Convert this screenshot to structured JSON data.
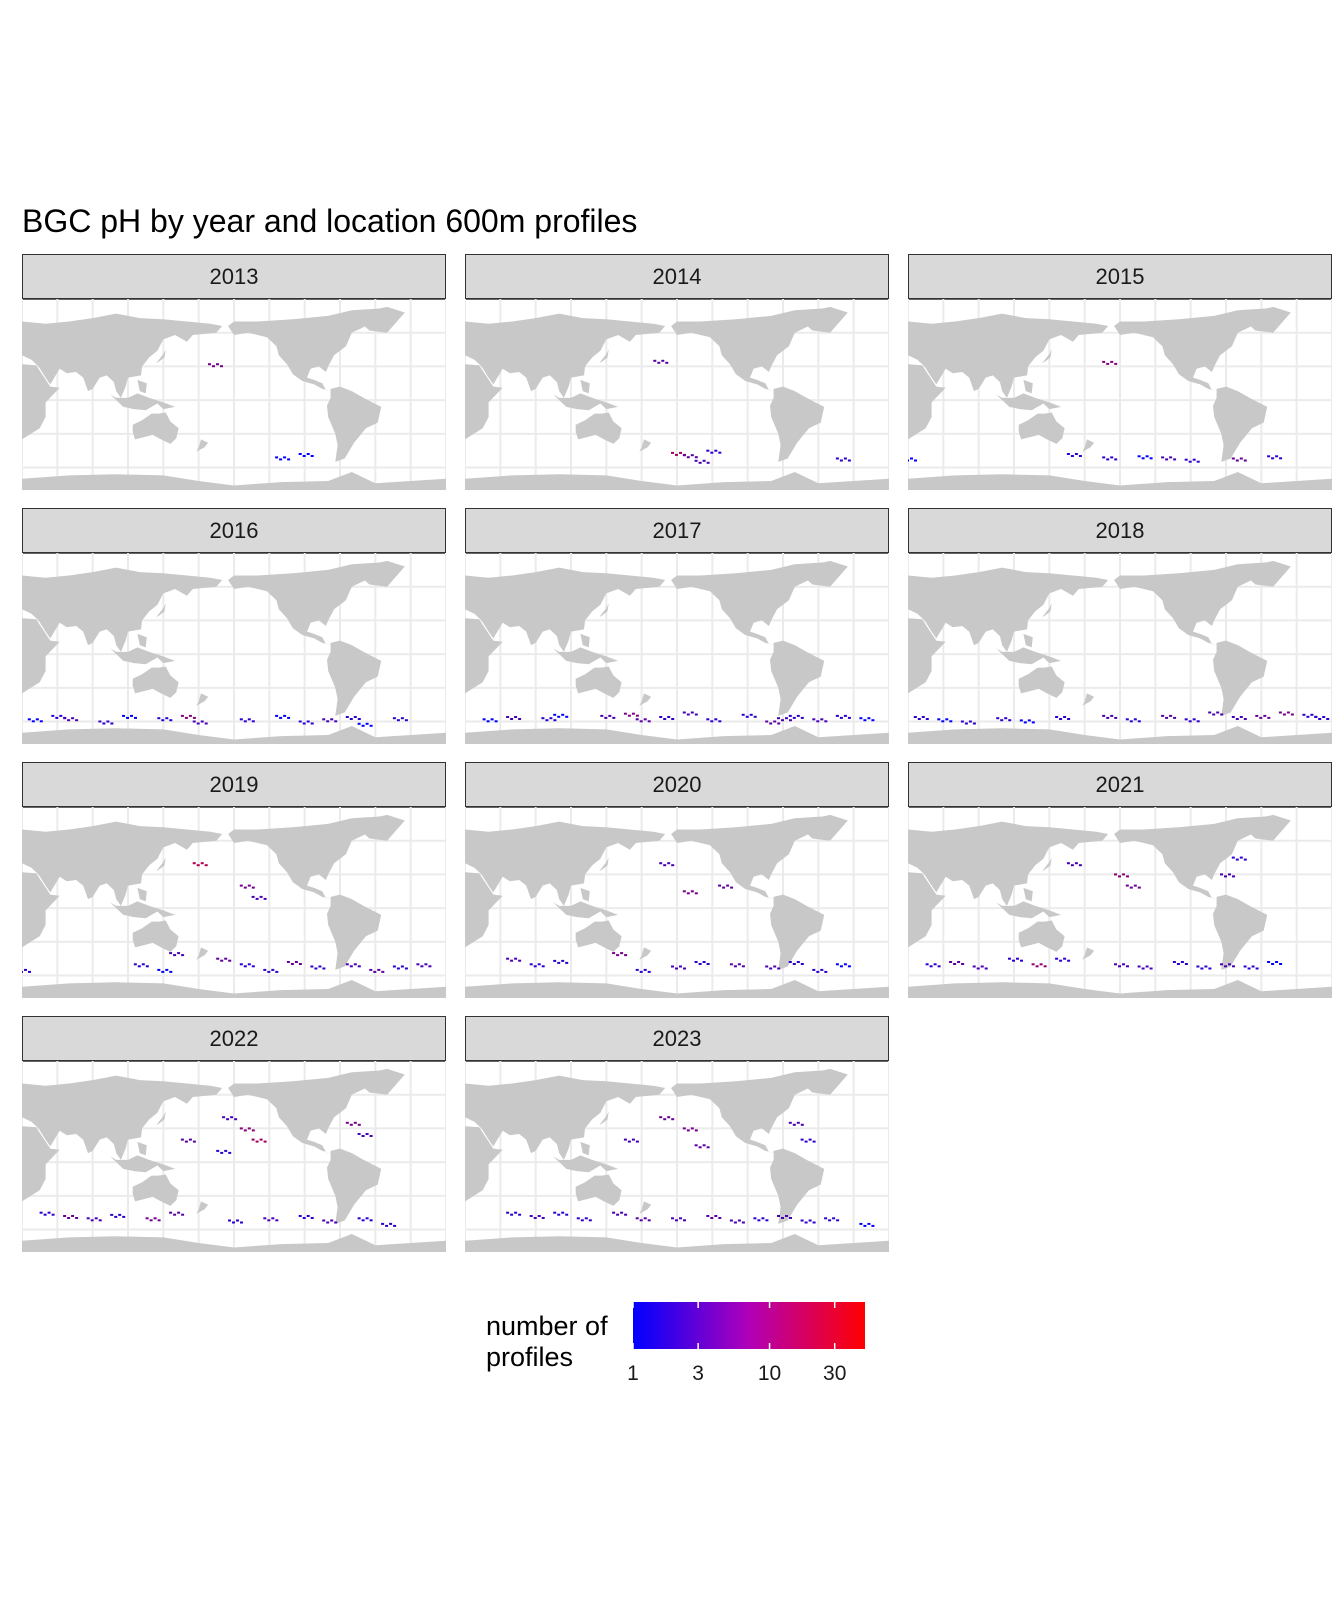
{
  "title": "BGC pH by year and location 600m profiles",
  "colors": {
    "land": "#c8c8c8",
    "ocean": "#ffffff",
    "grid": "#ebebeb",
    "strip": "#d9d9d9",
    "low": "#0000ff",
    "high": "#ff0000"
  },
  "legend": {
    "title": "number of profiles",
    "ticks": [
      {
        "label": "1",
        "value": 1
      },
      {
        "label": "3",
        "value": 3
      },
      {
        "label": "10",
        "value": 10
      },
      {
        "label": "30",
        "value": 30
      }
    ],
    "scale": "log",
    "max": 50
  },
  "chart_data": {
    "type": "heatmap",
    "facet_by": "year",
    "panels": [
      {
        "year": "2013",
        "profiles": [
          [
            -177,
            32,
            6
          ],
          [
            -120,
            -51,
            1
          ],
          [
            -100,
            -48,
            1
          ]
        ]
      },
      {
        "year": "2014",
        "profiles": [
          [
            -175,
            35,
            4
          ],
          [
            -160,
            -47,
            12
          ],
          [
            -150,
            -49,
            4
          ],
          [
            -140,
            -54,
            3
          ],
          [
            -130,
            -45,
            2
          ],
          [
            -20,
            -52,
            2
          ]
        ]
      },
      {
        "year": "2015",
        "profiles": [
          [
            -170,
            34,
            8
          ],
          [
            20,
            -52,
            1
          ],
          [
            160,
            -48,
            2
          ],
          [
            -170,
            -51,
            2
          ],
          [
            -140,
            -50,
            1
          ],
          [
            -120,
            -51,
            3
          ],
          [
            -100,
            -53,
            2
          ],
          [
            -60,
            -52,
            5
          ],
          [
            -30,
            -50,
            2
          ]
        ]
      },
      {
        "year": "2016",
        "profiles": [
          [
            30,
            -58,
            1
          ],
          [
            50,
            -55,
            2
          ],
          [
            60,
            -57,
            3
          ],
          [
            90,
            -60,
            2
          ],
          [
            110,
            -55,
            1
          ],
          [
            140,
            -57,
            2
          ],
          [
            160,
            -55,
            8
          ],
          [
            170,
            -60,
            3
          ],
          [
            -150,
            -58,
            2
          ],
          [
            -120,
            -55,
            1
          ],
          [
            -100,
            -60,
            2
          ],
          [
            -80,
            -58,
            3
          ],
          [
            -60,
            -56,
            2
          ],
          [
            -50,
            -62,
            1
          ],
          [
            -20,
            -57,
            2
          ]
        ]
      },
      {
        "year": "2017",
        "profiles": [
          [
            40,
            -58,
            1
          ],
          [
            60,
            -56,
            3
          ],
          [
            90,
            -57,
            2
          ],
          [
            100,
            -54,
            1
          ],
          [
            140,
            -55,
            3
          ],
          [
            160,
            -53,
            7
          ],
          [
            170,
            -58,
            4
          ],
          [
            -170,
            -56,
            2
          ],
          [
            -150,
            -52,
            3
          ],
          [
            -130,
            -58,
            2
          ],
          [
            -100,
            -54,
            2
          ],
          [
            -80,
            -60,
            4
          ],
          [
            -70,
            -57,
            3
          ],
          [
            -60,
            -55,
            2
          ],
          [
            -40,
            -58,
            3
          ],
          [
            -20,
            -55,
            2
          ],
          [
            0,
            -57,
            1
          ]
        ]
      },
      {
        "year": "2018",
        "profiles": [
          [
            30,
            -56,
            2
          ],
          [
            50,
            -58,
            1
          ],
          [
            70,
            -60,
            2
          ],
          [
            100,
            -57,
            2
          ],
          [
            120,
            -59,
            1
          ],
          [
            150,
            -56,
            2
          ],
          [
            -170,
            -55,
            3
          ],
          [
            -150,
            -58,
            2
          ],
          [
            -120,
            -55,
            4
          ],
          [
            -100,
            -58,
            2
          ],
          [
            -80,
            -52,
            3
          ],
          [
            -60,
            -56,
            3
          ],
          [
            -40,
            -55,
            5
          ],
          [
            -20,
            -52,
            6
          ],
          [
            0,
            -54,
            2
          ],
          [
            10,
            -56,
            2
          ]
        ]
      },
      {
        "year": "2019",
        "profiles": [
          [
            170,
            40,
            15
          ],
          [
            -150,
            20,
            6
          ],
          [
            -140,
            10,
            3
          ],
          [
            120,
            -50,
            2
          ],
          [
            140,
            -55,
            1
          ],
          [
            150,
            -40,
            3
          ],
          [
            -170,
            -45,
            4
          ],
          [
            -150,
            -50,
            2
          ],
          [
            -130,
            -55,
            2
          ],
          [
            -110,
            -48,
            5
          ],
          [
            -90,
            -52,
            2
          ],
          [
            -60,
            -50,
            3
          ],
          [
            -40,
            -55,
            4
          ],
          [
            -20,
            -52,
            2
          ],
          [
            0,
            -50,
            3
          ],
          [
            20,
            -55,
            2
          ]
        ]
      },
      {
        "year": "2020",
        "profiles": [
          [
            -170,
            40,
            3
          ],
          [
            -150,
            15,
            6
          ],
          [
            -120,
            20,
            4
          ],
          [
            60,
            -45,
            3
          ],
          [
            80,
            -50,
            2
          ],
          [
            100,
            -47,
            2
          ],
          [
            150,
            -40,
            6
          ],
          [
            170,
            -55,
            2
          ],
          [
            -160,
            -52,
            3
          ],
          [
            -140,
            -48,
            2
          ],
          [
            -110,
            -50,
            4
          ],
          [
            -80,
            -52,
            3
          ],
          [
            -60,
            -48,
            2
          ],
          [
            -40,
            -55,
            2
          ],
          [
            -20,
            -50,
            1
          ]
        ]
      },
      {
        "year": "2021",
        "profiles": [
          [
            160,
            40,
            3
          ],
          [
            -160,
            30,
            8
          ],
          [
            -150,
            20,
            5
          ],
          [
            -70,
            30,
            3
          ],
          [
            -60,
            45,
            2
          ],
          [
            40,
            -50,
            2
          ],
          [
            60,
            -48,
            4
          ],
          [
            80,
            -52,
            3
          ],
          [
            110,
            -45,
            2
          ],
          [
            130,
            -50,
            9
          ],
          [
            150,
            -45,
            2
          ],
          [
            -160,
            -50,
            3
          ],
          [
            -140,
            -52,
            3
          ],
          [
            -110,
            -48,
            2
          ],
          [
            -90,
            -52,
            2
          ],
          [
            -70,
            -50,
            3
          ],
          [
            -50,
            -52,
            2
          ],
          [
            -30,
            -48,
            1
          ]
        ]
      },
      {
        "year": "2022",
        "profiles": [
          [
            -165,
            40,
            3
          ],
          [
            -150,
            30,
            8
          ],
          [
            -140,
            20,
            12
          ],
          [
            -60,
            35,
            6
          ],
          [
            -50,
            25,
            3
          ],
          [
            160,
            20,
            4
          ],
          [
            -170,
            10,
            2
          ],
          [
            40,
            -45,
            2
          ],
          [
            60,
            -48,
            5
          ],
          [
            80,
            -50,
            3
          ],
          [
            100,
            -47,
            2
          ],
          [
            130,
            -50,
            6
          ],
          [
            150,
            -45,
            4
          ],
          [
            -160,
            -52,
            2
          ],
          [
            -130,
            -50,
            3
          ],
          [
            -100,
            -48,
            2
          ],
          [
            -80,
            -52,
            3
          ],
          [
            -50,
            -50,
            2
          ],
          [
            -30,
            -55,
            2
          ]
        ]
      },
      {
        "year": "2023",
        "profiles": [
          [
            -170,
            40,
            5
          ],
          [
            -150,
            30,
            6
          ],
          [
            -140,
            15,
            4
          ],
          [
            -60,
            35,
            3
          ],
          [
            -50,
            20,
            2
          ],
          [
            160,
            20,
            3
          ],
          [
            60,
            -45,
            2
          ],
          [
            80,
            -48,
            3
          ],
          [
            100,
            -45,
            2
          ],
          [
            120,
            -50,
            2
          ],
          [
            150,
            -45,
            3
          ],
          [
            170,
            -50,
            4
          ],
          [
            -160,
            -50,
            3
          ],
          [
            -130,
            -48,
            4
          ],
          [
            -110,
            -52,
            3
          ],
          [
            -90,
            -50,
            2
          ],
          [
            -70,
            -48,
            3
          ],
          [
            -50,
            -52,
            2
          ],
          [
            -30,
            -50,
            2
          ],
          [
            0,
            -55,
            1
          ]
        ]
      }
    ]
  }
}
